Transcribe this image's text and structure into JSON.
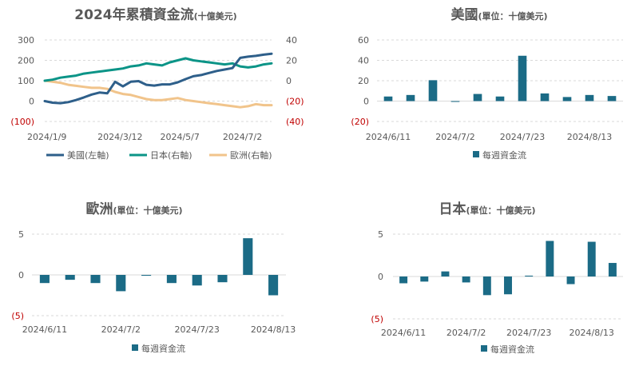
{
  "chart_data": [
    {
      "id": "cumulative",
      "type": "line",
      "title": "2024年累積資金流",
      "title_unit": "(十億美元)",
      "y_left": {
        "ylim": [
          -100,
          300
        ],
        "ticks": [
          300,
          200,
          100,
          0,
          -100
        ],
        "tick_labels": [
          "300",
          "200",
          "100",
          "0",
          "(100)"
        ]
      },
      "y_right": {
        "ylim": [
          -40,
          40
        ],
        "ticks": [
          40,
          20,
          0,
          -20,
          -40
        ],
        "tick_labels": [
          "40",
          "20",
          "0",
          "(20)",
          "(40)"
        ]
      },
      "x_ticks": [
        {
          "label": "2024/1/9",
          "pos": 0
        },
        {
          "label": "2024/3/12",
          "pos": 9
        },
        {
          "label": "2024/5/7",
          "pos": 17
        },
        {
          "label": "2024/7/2",
          "pos": 25
        }
      ],
      "grid": "horizontal",
      "legend": "bottom",
      "series": [
        {
          "name": "美國(左軸)",
          "axis": "left",
          "color": "#2e5f8a",
          "values": [
            0,
            -8,
            -10,
            -5,
            5,
            18,
            32,
            42,
            38,
            95,
            72,
            95,
            98,
            80,
            76,
            82,
            82,
            92,
            108,
            122,
            128,
            138,
            148,
            155,
            162,
            212,
            218,
            222,
            228,
            232
          ]
        },
        {
          "name": "日本(右軸)",
          "axis": "right",
          "color": "#0b9487",
          "values": [
            0,
            1,
            3,
            4,
            5,
            7,
            8,
            9,
            10,
            11,
            12,
            14,
            15,
            17,
            16,
            15,
            18,
            20,
            22,
            20,
            19,
            18,
            17,
            16,
            17,
            14,
            13,
            14,
            16,
            17
          ]
        },
        {
          "name": "歐洲(右軸)",
          "axis": "right",
          "color": "#f1c48b",
          "values": [
            0,
            -1,
            -2,
            -4,
            -5,
            -6,
            -7,
            -7,
            -8,
            -11,
            -13,
            -14,
            -16,
            -18,
            -19,
            -19,
            -18,
            -17,
            -19,
            -20,
            -21,
            -22,
            -23,
            -24,
            -25,
            -26,
            -25,
            -23,
            -24,
            -24
          ]
        }
      ]
    },
    {
      "id": "us",
      "type": "bar",
      "title": "美國",
      "title_unit": "(單位：十億美元)",
      "ylim": [
        -20,
        60
      ],
      "ticks": [
        60,
        40,
        20,
        0,
        -20
      ],
      "tick_labels": [
        "60",
        "40",
        "20",
        "0",
        "(20)"
      ],
      "x_ticks": [
        {
          "label": "2024/6/11",
          "pos": 0
        },
        {
          "label": "2024/7/2",
          "pos": 3
        },
        {
          "label": "2024/7/23",
          "pos": 6
        },
        {
          "label": "2024/8/13",
          "pos": 9
        }
      ],
      "values": [
        4.5,
        6,
        20.5,
        0,
        7,
        4.5,
        44.5,
        7.5,
        4,
        6,
        5
      ],
      "series_name": "每週資金流",
      "color": "#1b6b86",
      "legend": "bottom"
    },
    {
      "id": "europe",
      "type": "bar",
      "title": "歐洲",
      "title_unit": "(單位：十億美元)",
      "ylim": [
        -5,
        5
      ],
      "ticks": [
        5,
        0,
        -5
      ],
      "tick_labels": [
        "5",
        "0",
        "(5)"
      ],
      "x_ticks": [
        {
          "label": "2024/6/11",
          "pos": 0
        },
        {
          "label": "2024/7/2",
          "pos": 3
        },
        {
          "label": "2024/7/23",
          "pos": 6
        },
        {
          "label": "2024/8/13",
          "pos": 9
        }
      ],
      "values": [
        -1,
        -0.6,
        -1,
        -2,
        -0.1,
        -1,
        -1.3,
        -0.9,
        4.5,
        -2.5
      ],
      "series_name": "每週資金流",
      "color": "#1b6b86",
      "legend": "bottom"
    },
    {
      "id": "japan",
      "type": "bar",
      "title": "日本",
      "title_unit": "(單位：十億美元)",
      "ylim": [
        -5,
        5
      ],
      "ticks": [
        5,
        0,
        -5
      ],
      "tick_labels": [
        "5",
        "0",
        "(5)"
      ],
      "x_ticks": [
        {
          "label": "2024/6/11",
          "pos": 0
        },
        {
          "label": "2024/7/2",
          "pos": 3
        },
        {
          "label": "2024/7/23",
          "pos": 6
        },
        {
          "label": "2024/8/13",
          "pos": 9
        }
      ],
      "values": [
        -0.8,
        -0.6,
        0.6,
        -0.7,
        -2.2,
        -2.1,
        0.1,
        4.2,
        -0.9,
        4.1,
        1.6
      ],
      "series_name": "每週資金流",
      "color": "#1b6b86",
      "legend": "bottom"
    }
  ]
}
